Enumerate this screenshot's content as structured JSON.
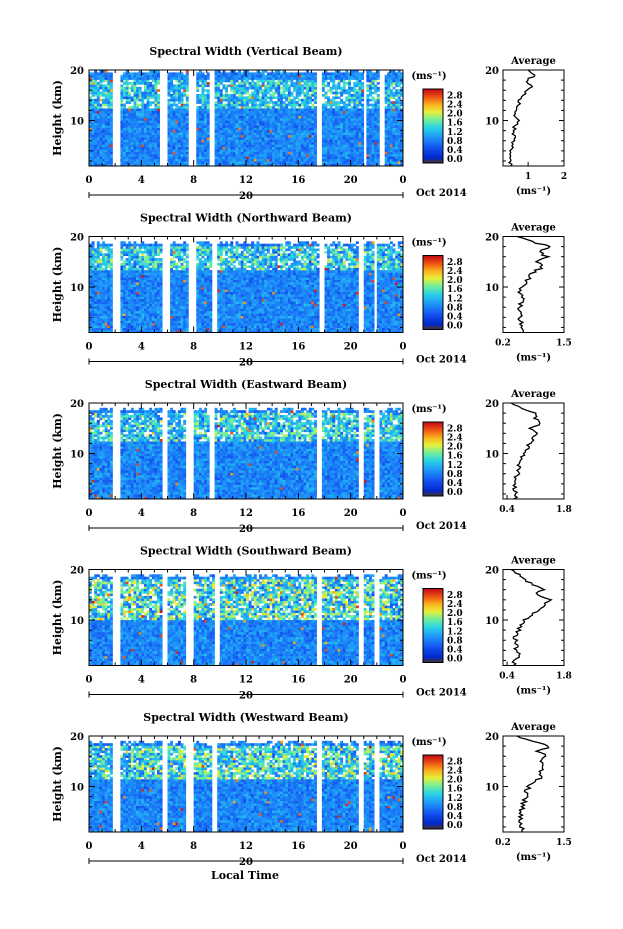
{
  "figure": {
    "xlabel": "Local Time",
    "date_label": "Oct 2014",
    "day_label": "20",
    "colorbar_unit": "(ms⁻¹)",
    "profile_xlabel": "(ms⁻¹)",
    "profile_title": "Average",
    "ylabel": "Height (km)"
  },
  "chart_data": [
    {
      "type": "heatmap",
      "title": "Spectral Width (Vertical Beam)",
      "xlabel": "",
      "ylabel": "Height (km)",
      "xlim": [
        0,
        24
      ],
      "ylim": [
        1,
        20
      ],
      "x_ticks": [
        "0",
        "4",
        "8",
        "12",
        "16",
        "20",
        "0"
      ],
      "y_ticks": [
        "10",
        "20"
      ],
      "colorbar": {
        "ticks": [
          "0.0",
          "0.4",
          "0.8",
          "1.2",
          "1.6",
          "2.0",
          "2.4",
          "2.8"
        ],
        "range": [
          0,
          3.0
        ]
      },
      "gaps_hours": [
        [
          1.8,
          2.4
        ],
        [
          5.6,
          6.0
        ],
        [
          7.8,
          8.2
        ],
        [
          9.2,
          9.5
        ],
        [
          17.4,
          17.8
        ],
        [
          21.0,
          21.2
        ],
        [
          22.4,
          22.6
        ]
      ],
      "top_km": 19.5,
      "intensity": 0.35,
      "noisy_band_km": [
        12,
        18
      ],
      "profile": {
        "title": "Average",
        "xlabel": "(ms⁻¹)",
        "xlim": [
          0.3,
          2.0
        ],
        "x_ticks": [
          "1",
          "2"
        ],
        "y_ticks": [
          "10",
          "20"
        ],
        "heights": [
          1,
          2,
          3,
          4,
          5,
          6,
          7,
          8,
          9,
          10,
          11,
          12,
          13,
          14,
          15,
          16,
          17,
          18,
          19,
          20
        ],
        "values": [
          0.55,
          0.5,
          0.52,
          0.55,
          0.6,
          0.58,
          0.62,
          0.6,
          0.65,
          0.7,
          0.6,
          0.7,
          0.75,
          0.7,
          0.9,
          1.0,
          1.1,
          0.95,
          1.2,
          1.0
        ]
      }
    },
    {
      "type": "heatmap",
      "title": "Spectral Width (Northward Beam)",
      "xlabel": "",
      "ylabel": "Height (km)",
      "xlim": [
        0,
        24
      ],
      "ylim": [
        1,
        20
      ],
      "x_ticks": [
        "0",
        "4",
        "8",
        "12",
        "16",
        "20",
        "0"
      ],
      "y_ticks": [
        "10",
        "20"
      ],
      "colorbar": {
        "ticks": [
          "0.0",
          "0.4",
          "0.8",
          "1.2",
          "1.6",
          "2.0",
          "2.4",
          "2.8"
        ],
        "range": [
          0,
          3.0
        ]
      },
      "gaps_hours": [
        [
          1.8,
          2.3
        ],
        [
          5.8,
          6.1
        ],
        [
          7.8,
          8.2
        ],
        [
          9.5,
          9.8
        ],
        [
          17.6,
          17.9
        ],
        [
          20.6,
          20.9
        ],
        [
          21.8,
          22.0
        ]
      ],
      "top_km": 18.5,
      "intensity": 0.4,
      "noisy_band_km": [
        13,
        18
      ],
      "profile": {
        "title": "Average",
        "xlabel": "(ms⁻¹)",
        "xlim": [
          0.2,
          1.5
        ],
        "x_ticks": [
          "0.2",
          "1.5"
        ],
        "y_ticks": [
          "10",
          "20"
        ],
        "heights": [
          1,
          2,
          3,
          4,
          5,
          6,
          7,
          8,
          9,
          10,
          11,
          12,
          13,
          14,
          15,
          16,
          17,
          18,
          19,
          20
        ],
        "values": [
          0.6,
          0.55,
          0.58,
          0.52,
          0.6,
          0.55,
          0.6,
          0.65,
          0.58,
          0.62,
          0.7,
          0.75,
          0.85,
          1.05,
          0.9,
          1.15,
          0.95,
          1.2,
          0.8,
          0.5
        ]
      }
    },
    {
      "type": "heatmap",
      "title": "Spectral Width (Eastward Beam)",
      "xlabel": "",
      "ylabel": "Height (km)",
      "xlim": [
        0,
        24
      ],
      "ylim": [
        1,
        20
      ],
      "x_ticks": [
        "0",
        "4",
        "8",
        "12",
        "16",
        "20",
        "0"
      ],
      "y_ticks": [
        "10",
        "20"
      ],
      "colorbar": {
        "ticks": [
          "0.0",
          "0.4",
          "0.8",
          "1.2",
          "1.6",
          "2.0",
          "2.4",
          "2.8"
        ],
        "range": [
          0,
          3.0
        ]
      },
      "gaps_hours": [
        [
          1.8,
          2.3
        ],
        [
          5.7,
          6.0
        ],
        [
          7.6,
          7.9
        ],
        [
          9.3,
          9.6
        ],
        [
          17.5,
          17.8
        ],
        [
          20.6,
          20.9
        ],
        [
          21.9,
          22.1
        ]
      ],
      "top_km": 18.5,
      "intensity": 0.4,
      "noisy_band_km": [
        12,
        18
      ],
      "profile": {
        "title": "Average",
        "xlabel": "",
        "xlim": [
          0.3,
          1.8
        ],
        "x_ticks": [
          "0.4",
          "1.8"
        ],
        "y_ticks": [
          "10",
          "20"
        ],
        "heights": [
          1,
          2,
          3,
          4,
          5,
          6,
          7,
          8,
          9,
          10,
          11,
          12,
          13,
          14,
          15,
          16,
          17,
          18,
          19,
          20
        ],
        "values": [
          0.6,
          0.65,
          0.55,
          0.6,
          0.62,
          0.65,
          0.7,
          0.68,
          0.75,
          0.8,
          0.9,
          0.95,
          1.05,
          1.15,
          1.0,
          1.2,
          1.1,
          1.05,
          0.8,
          0.5
        ]
      }
    },
    {
      "type": "heatmap",
      "title": "Spectral Width (Southward Beam)",
      "xlabel": "",
      "ylabel": "Height (km)",
      "xlim": [
        0,
        24
      ],
      "ylim": [
        1,
        20
      ],
      "x_ticks": [
        "0",
        "4",
        "8",
        "12",
        "16",
        "20",
        "0"
      ],
      "y_ticks": [
        "10",
        "20"
      ],
      "colorbar": {
        "ticks": [
          "0.0",
          "0.4",
          "0.8",
          "1.2",
          "1.6",
          "2.0",
          "2.4",
          "2.8"
        ],
        "range": [
          0,
          3.0
        ]
      },
      "gaps_hours": [
        [
          1.8,
          2.3
        ],
        [
          5.7,
          6.0
        ],
        [
          7.6,
          7.9
        ],
        [
          9.6,
          9.9
        ],
        [
          17.4,
          17.7
        ],
        [
          20.6,
          20.9
        ],
        [
          21.9,
          22.1
        ]
      ],
      "top_km": 18.5,
      "intensity": 0.5,
      "noisy_band_km": [
        10,
        18
      ],
      "profile": {
        "title": "Average",
        "xlabel": "(ms⁻¹)",
        "xlim": [
          0.3,
          1.8
        ],
        "x_ticks": [
          "0.4",
          "1.8"
        ],
        "y_ticks": [
          "10",
          "20"
        ],
        "heights": [
          1,
          2,
          3,
          4,
          5,
          6,
          7,
          8,
          9,
          10,
          11,
          12,
          13,
          14,
          15,
          16,
          17,
          18,
          19,
          20
        ],
        "values": [
          0.6,
          0.58,
          0.7,
          0.6,
          0.65,
          0.62,
          0.6,
          0.7,
          0.75,
          0.8,
          1.0,
          1.15,
          1.3,
          1.45,
          1.1,
          1.3,
          1.0,
          0.85,
          0.7,
          0.5
        ]
      }
    },
    {
      "type": "heatmap",
      "title": "Spectral Width (Westward Beam)",
      "xlabel": "Local Time",
      "ylabel": "Height (km)",
      "xlim": [
        0,
        24
      ],
      "ylim": [
        1,
        20
      ],
      "x_ticks": [
        "0",
        "4",
        "8",
        "12",
        "16",
        "20",
        "0"
      ],
      "y_ticks": [
        "10",
        "20"
      ],
      "colorbar": {
        "ticks": [
          "0.0",
          "0.4",
          "0.8",
          "1.2",
          "1.6",
          "2.0",
          "2.4",
          "2.8"
        ],
        "range": [
          0,
          3.0
        ]
      },
      "gaps_hours": [
        [
          1.8,
          2.3
        ],
        [
          5.7,
          6.0
        ],
        [
          7.6,
          7.9
        ],
        [
          9.5,
          9.8
        ],
        [
          17.5,
          17.8
        ],
        [
          20.6,
          20.9
        ],
        [
          21.9,
          22.1
        ]
      ],
      "top_km": 18.5,
      "intensity": 0.45,
      "noisy_band_km": [
        11,
        18
      ],
      "profile": {
        "title": "Average",
        "xlabel": "(ms⁻¹)",
        "xlim": [
          0.2,
          1.5
        ],
        "x_ticks": [
          "0.2",
          "1.5"
        ],
        "y_ticks": [
          "10",
          "20"
        ],
        "heights": [
          1,
          2,
          3,
          4,
          5,
          6,
          7,
          8,
          9,
          10,
          11,
          12,
          13,
          14,
          15,
          16,
          17,
          18,
          19,
          20
        ],
        "values": [
          0.6,
          0.58,
          0.55,
          0.6,
          0.58,
          0.62,
          0.65,
          0.7,
          0.68,
          0.75,
          0.9,
          1.05,
          0.95,
          1.1,
          1.0,
          1.15,
          0.95,
          1.2,
          0.8,
          0.5
        ]
      }
    }
  ]
}
